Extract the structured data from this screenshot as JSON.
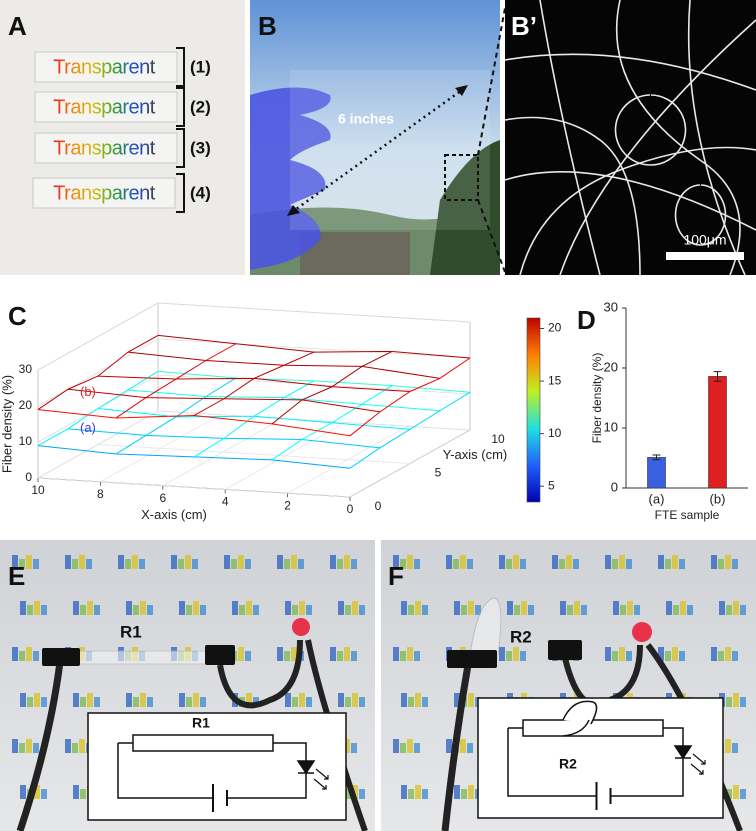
{
  "panel_labels": {
    "A": "A",
    "B": "B",
    "B_prime": "B’",
    "C": "C",
    "D": "D",
    "E": "E",
    "F": "F"
  },
  "panel_a": {
    "samples": [
      "Transparent",
      "Transparent",
      "Transparent",
      "Transparent"
    ],
    "indices": [
      "(1)",
      "(2)",
      "(3)",
      "(4)"
    ]
  },
  "panel_b": {
    "annotation": "6 inches"
  },
  "panel_b_prime": {
    "scale_bar": "100μm"
  },
  "chart_data": [
    {
      "type": "surface",
      "xlabel": "X-axis (cm)",
      "ylabel": "Y-axis (cm)",
      "zlabel": "Fiber density (%)",
      "xlim": [
        0,
        10
      ],
      "ylim": [
        0,
        10
      ],
      "zlim": [
        0,
        30
      ],
      "xticks": [
        0,
        2,
        4,
        6,
        8,
        10
      ],
      "yticks": [
        0,
        5,
        10
      ],
      "zticks": [
        0,
        10,
        20,
        30
      ],
      "grid_x": [
        0,
        2.5,
        5,
        7.5,
        10
      ],
      "grid_y": [
        0,
        2.5,
        5,
        7.5,
        10
      ],
      "series": [
        {
          "name": "(a)",
          "color": "#3a3adf",
          "values": [
            [
              8,
              9,
              8.5,
              8,
              9
            ],
            [
              9,
              10,
              9,
              8.5,
              9
            ],
            [
              9.5,
              10,
              10.5,
              9,
              10
            ],
            [
              10,
              10.5,
              11,
              10,
              10.5
            ],
            [
              10.5,
              11,
              11,
              10.5,
              11
            ]
          ]
        },
        {
          "name": "(b)",
          "color": "#d03030",
          "values": [
            [
              17,
              19,
              20,
              18,
              19
            ],
            [
              19,
              21,
              20,
              19,
              20
            ],
            [
              20,
              20,
              21,
              19.5,
              19
            ],
            [
              19,
              21,
              20,
              20,
              21
            ],
            [
              20,
              20.5,
              19,
              20,
              21
            ]
          ]
        }
      ],
      "colorbar": {
        "lim": [
          3.5,
          21
        ],
        "ticks": [
          5,
          10,
          15,
          20
        ]
      }
    },
    {
      "type": "bar",
      "ylabel": "Fiber density (%)",
      "xlabel": "FTE sample",
      "categories": [
        "(a)",
        "(b)"
      ],
      "values": [
        5.1,
        18.6
      ],
      "errors": [
        0.4,
        0.8
      ],
      "colors": [
        "#3a5fe0",
        "#e02020"
      ],
      "ylim": [
        0,
        30
      ],
      "yticks": [
        0,
        10,
        20,
        30
      ]
    }
  ],
  "panel_e": {
    "resistor_label": "R1",
    "circuit_label": "R1"
  },
  "panel_f": {
    "resistor_label": "R2",
    "circuit_label": "R2"
  }
}
